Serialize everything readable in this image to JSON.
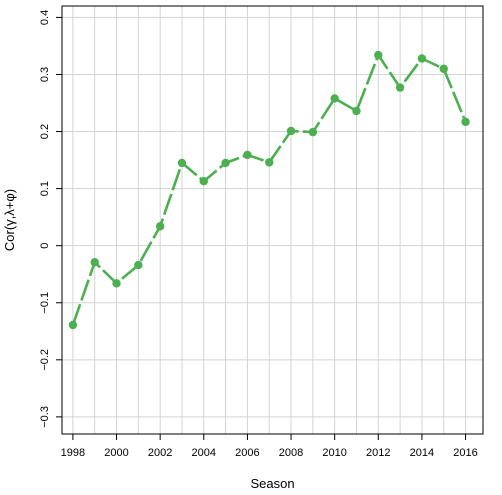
{
  "chart_data": {
    "type": "line",
    "title": "",
    "xlabel": "Season",
    "ylabel": "Cor(γ,λ+φ)",
    "xlim": [
      1997.5,
      2016.8
    ],
    "ylim": [
      -0.33,
      0.42
    ],
    "grid": true,
    "line_color": "#4caf50",
    "grid_color": "#d3d3d3",
    "x_ticks": [
      1998,
      2000,
      2002,
      2004,
      2006,
      2008,
      2010,
      2012,
      2014,
      2016
    ],
    "x_tick_labels": [
      "1998",
      "2000",
      "2002",
      "2004",
      "2006",
      "2008",
      "2010",
      "2012",
      "2014",
      "2016"
    ],
    "y_ticks": [
      -0.3,
      -0.2,
      -0.1,
      0,
      0.1,
      0.2,
      0.3,
      0.4
    ],
    "y_tick_labels": [
      "−0.3",
      "−0.2",
      "−0.1",
      "0",
      "0.1",
      "0.2",
      "0.3",
      "0.4"
    ],
    "x": [
      1998,
      1999,
      2000,
      2001,
      2002,
      2003,
      2004,
      2005,
      2006,
      2007,
      2008,
      2009,
      2010,
      2011,
      2012,
      2013,
      2014,
      2015,
      2016
    ],
    "y": [
      -0.139,
      -0.029,
      -0.066,
      -0.034,
      0.034,
      0.145,
      0.113,
      0.145,
      0.159,
      0.146,
      0.201,
      0.199,
      0.258,
      0.236,
      0.334,
      0.277,
      0.328,
      0.31,
      0.217
    ]
  }
}
